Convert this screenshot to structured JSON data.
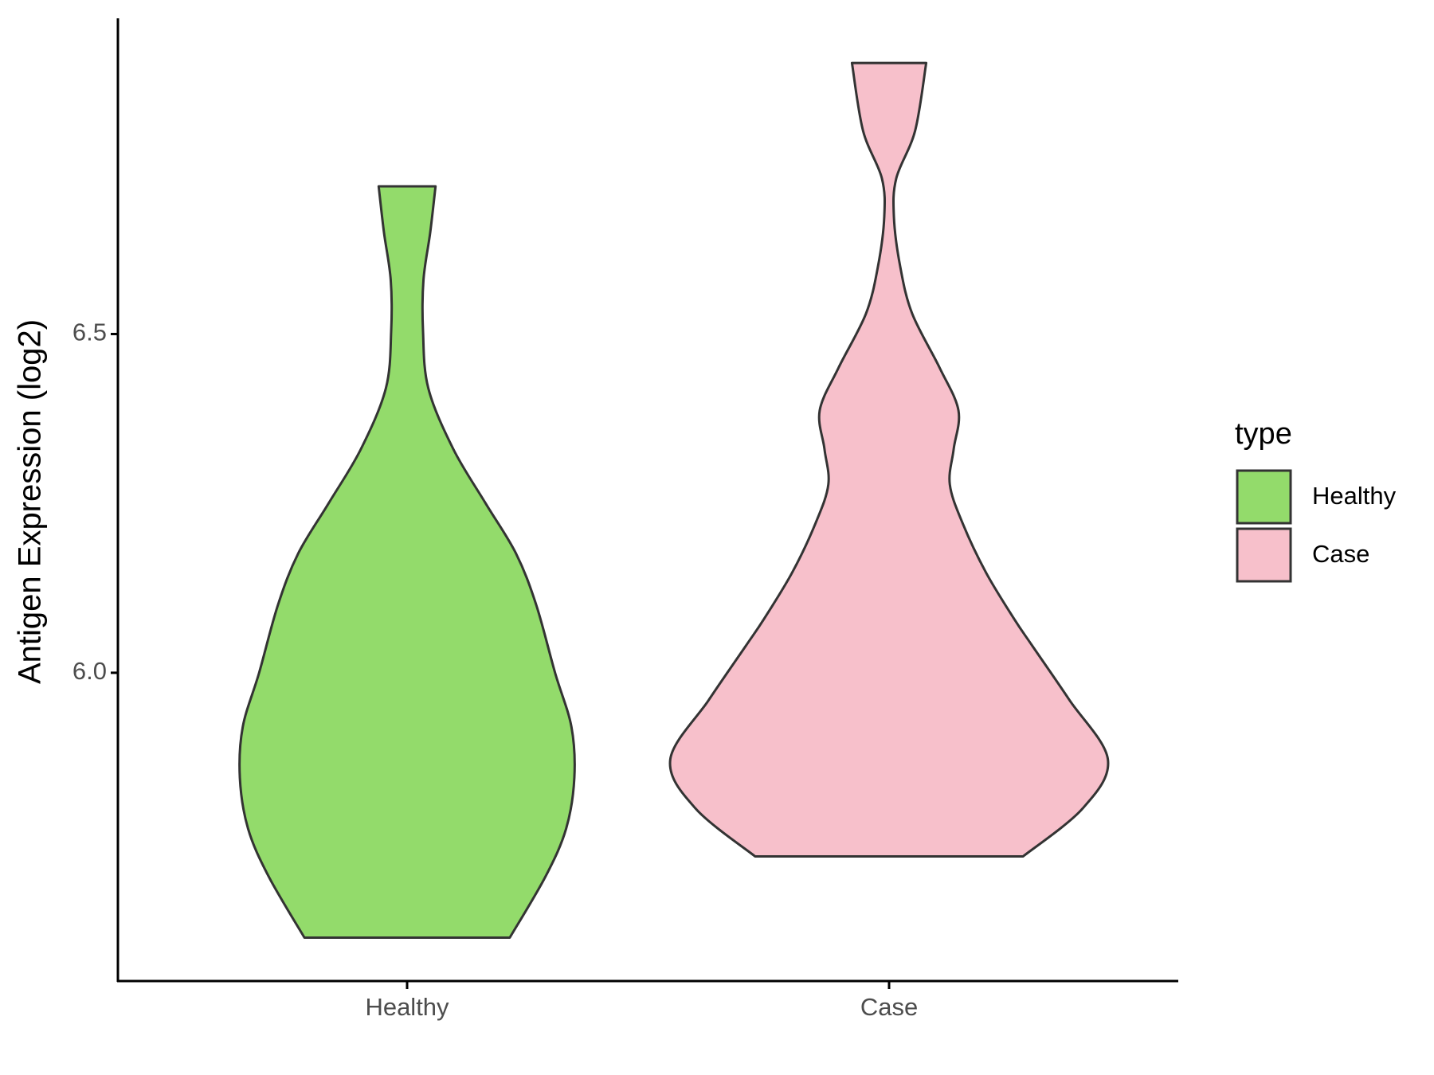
{
  "chart_data": {
    "type": "violin",
    "ylabel": "Antigen Expression (log2)",
    "categories": [
      "Healthy",
      "Case"
    ],
    "legend_title": "type",
    "ylim": [
      5.545,
      6.966
    ],
    "yticks": [
      {
        "value": 6.0,
        "label": "6.0"
      },
      {
        "value": 6.5,
        "label": "6.5"
      }
    ],
    "series": [
      {
        "name": "Healthy",
        "color": "#93db6b",
        "y": [
          6.718,
          6.65,
          6.58,
          6.505,
          6.42,
          6.33,
          6.25,
          6.176,
          6.1,
          6.0,
          5.92,
          5.845,
          5.77,
          5.699,
          5.609
        ],
        "widths": [
          0.059,
          0.048,
          0.034,
          0.033,
          0.044,
          0.096,
          0.163,
          0.226,
          0.268,
          0.307,
          0.341,
          0.347,
          0.33,
          0.287,
          0.213
        ]
      },
      {
        "name": "Case",
        "color": "#f7c0cb",
        "y": [
          6.9,
          6.8,
          6.73,
          6.673,
          6.6,
          6.53,
          6.45,
          6.387,
          6.33,
          6.278,
          6.22,
          6.148,
          6.08,
          6.04,
          5.96,
          5.872,
          5.8,
          5.729
        ],
        "widths": [
          0.077,
          0.054,
          0.015,
          0.01,
          0.023,
          0.048,
          0.105,
          0.144,
          0.134,
          0.126,
          0.153,
          0.201,
          0.259,
          0.297,
          0.374,
          0.454,
          0.402,
          0.278
        ]
      }
    ]
  }
}
